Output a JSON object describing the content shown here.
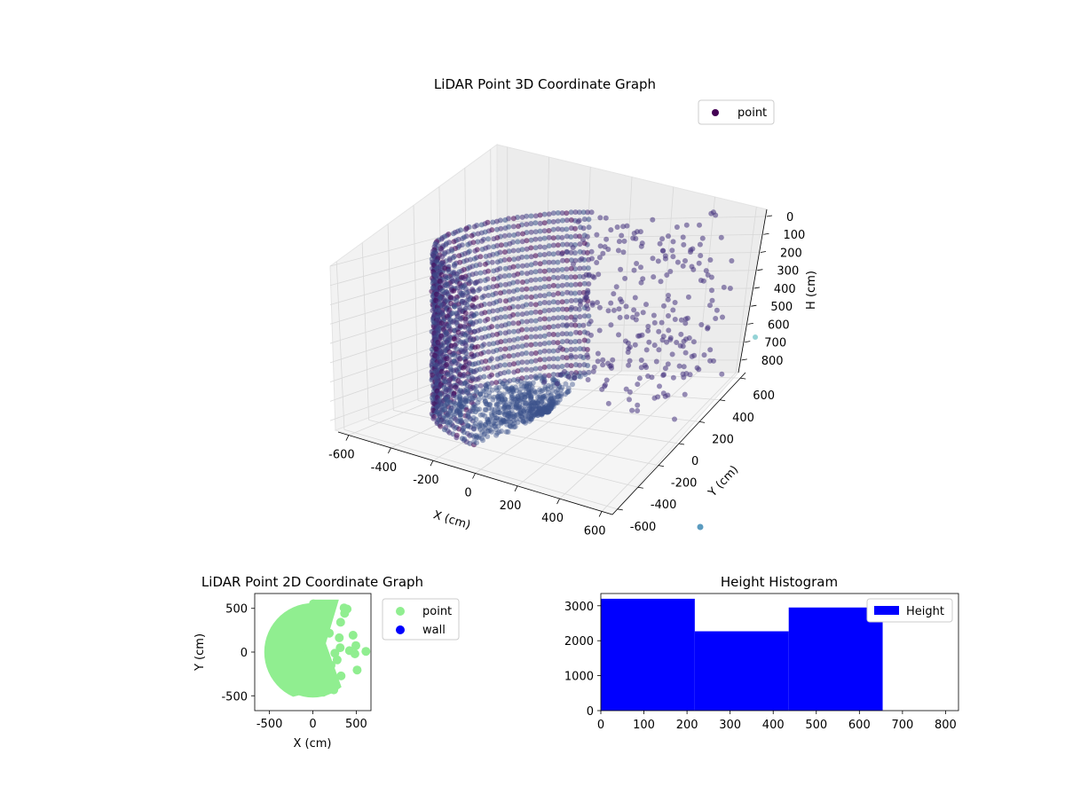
{
  "chart_data": [
    {
      "type": "scatter",
      "projection": "3d",
      "title": "LiDAR Point 3D Coordinate Graph",
      "xlabel": "X (cm)",
      "ylabel": "Y (cm)",
      "zlabel": "H (cm)",
      "xticks": [
        -600,
        -400,
        -200,
        0,
        200,
        400,
        600
      ],
      "yticks": [
        -600,
        -400,
        -200,
        0,
        200,
        400,
        600
      ],
      "zticks": [
        0,
        100,
        200,
        300,
        400,
        500,
        600,
        700,
        800
      ],
      "xlim": [
        -650,
        650
      ],
      "ylim": [
        -650,
        650
      ],
      "zlim": [
        0,
        850
      ],
      "z_axis_inverted": true,
      "colormap": "viridis",
      "legend": {
        "entries": [
          {
            "label": "point",
            "color": "#440154"
          }
        ],
        "position": "upper-right"
      },
      "grid": true
    },
    {
      "type": "scatter",
      "title": "LiDAR Point 2D Coordinate Graph",
      "xlabel": "X (cm)",
      "ylabel": "Y (cm)",
      "xticks": [
        -500,
        0,
        500
      ],
      "yticks": [
        -500,
        0,
        500
      ],
      "xlim": [
        -670,
        670
      ],
      "ylim": [
        -670,
        670
      ],
      "series": [
        {
          "name": "point",
          "color": "#90ee90"
        },
        {
          "name": "wall",
          "color": "#0000ff"
        }
      ],
      "legend": {
        "position": "outside-right"
      }
    },
    {
      "type": "bar",
      "subtype": "histogram",
      "title": "Height Histogram",
      "xticks": [
        0,
        100,
        200,
        300,
        400,
        500,
        600,
        700,
        800
      ],
      "yticks": [
        0,
        1000,
        2000,
        3000
      ],
      "xlim": [
        0,
        830
      ],
      "ylim": [
        0,
        3350
      ],
      "bins": [
        {
          "start": 0,
          "end": 218,
          "count": 3200
        },
        {
          "start": 218,
          "end": 436,
          "count": 2270
        },
        {
          "start": 436,
          "end": 654,
          "count": 2950
        }
      ],
      "series": [
        {
          "name": "Height",
          "color": "#0000ff"
        }
      ],
      "legend": {
        "position": "top-right"
      }
    }
  ]
}
